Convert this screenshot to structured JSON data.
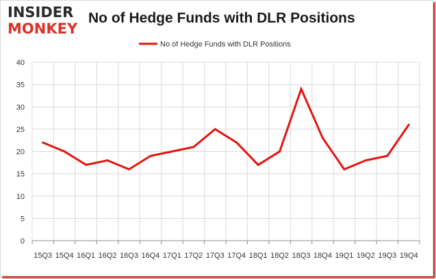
{
  "logo": {
    "line1": "INSIDER",
    "line2": "MONKEY"
  },
  "colors": {
    "series": "#e3130f",
    "grid": "#d9d9d9",
    "axis": "#8c8c8c",
    "text": "#333333"
  },
  "chart_data": {
    "type": "line",
    "title": "No of Hedge Funds with DLR Positions",
    "legend_position": "top-center",
    "grid": true,
    "categories": [
      "15Q3",
      "15Q4",
      "16Q1",
      "16Q2",
      "16Q3",
      "16Q4",
      "17Q1",
      "17Q2",
      "17Q3",
      "17Q4",
      "18Q1",
      "18Q2",
      "18Q3",
      "18Q4",
      "19Q1",
      "19Q2",
      "19Q3",
      "19Q4"
    ],
    "series": [
      {
        "name": "No of Hedge Funds with DLR Positions",
        "values": [
          22,
          20,
          17,
          18,
          16,
          19,
          20,
          21,
          25,
          22,
          17,
          20,
          34,
          23,
          16,
          18,
          19,
          26
        ]
      }
    ],
    "ylim": [
      0,
      40
    ],
    "yticks": [
      0,
      5,
      10,
      15,
      20,
      25,
      30,
      35,
      40
    ]
  }
}
